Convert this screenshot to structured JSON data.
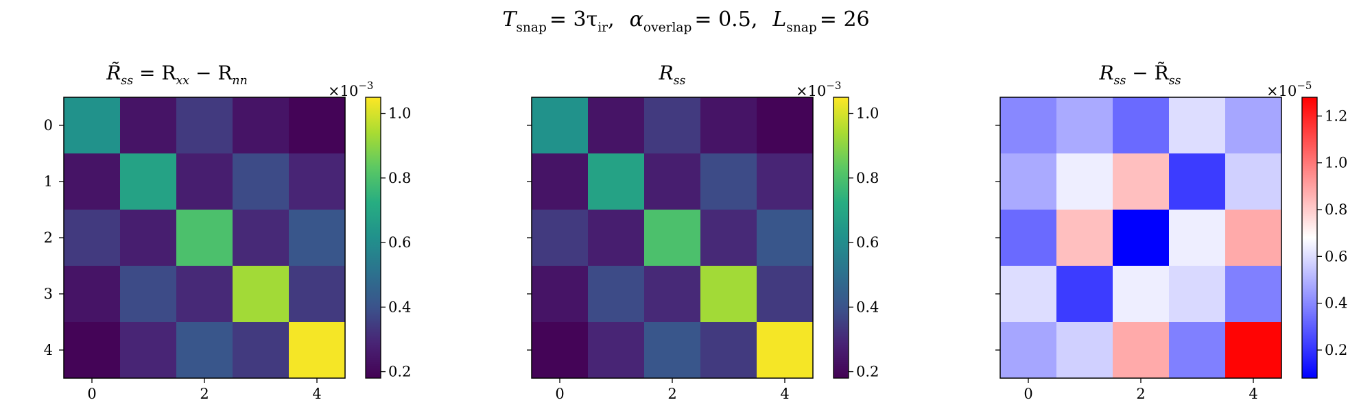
{
  "suptitle": {
    "t_symbol": "T",
    "t_sub": "snap",
    "t_value": "= 3τ",
    "t_value_sub": "ir",
    "sep1": ",",
    "a_symbol": "α",
    "a_sub": "overlap",
    "a_value": "= 0.5",
    "sep2": ",",
    "l_symbol": "L",
    "l_sub": "snap",
    "l_value": "= 26"
  },
  "chart_data": [
    {
      "type": "heatmap",
      "title": "R̃_ss = R_xx − R_nn",
      "title_parts": {
        "main": "R̃",
        "main_sub": "ss",
        "eq": " = R",
        "eq_sub": "xx",
        "minus": " − R",
        "minus_sub": "nn"
      },
      "colormap": "viridis",
      "x_ticks": [
        "0",
        "2",
        "4"
      ],
      "y_ticks": [
        "0",
        "1",
        "2",
        "3",
        "4"
      ],
      "show_y_tick_labels": true,
      "colorbar": {
        "min": 0.18,
        "max": 1.05,
        "ticks": [
          "0.2",
          "0.4",
          "0.6",
          "0.8",
          "1.0"
        ],
        "tick_values": [
          0.2,
          0.4,
          0.6,
          0.8,
          1.0
        ],
        "scale_prefix": "×10",
        "scale_exp": "−3"
      },
      "values": [
        [
          0.62,
          0.24,
          0.34,
          0.24,
          0.19
        ],
        [
          0.24,
          0.68,
          0.27,
          0.38,
          0.29
        ],
        [
          0.34,
          0.27,
          0.8,
          0.3,
          0.41
        ],
        [
          0.24,
          0.38,
          0.3,
          0.93,
          0.34
        ],
        [
          0.19,
          0.29,
          0.41,
          0.34,
          1.04
        ]
      ]
    },
    {
      "type": "heatmap",
      "title": "R_ss",
      "title_parts": {
        "main": "R",
        "main_sub": "ss"
      },
      "colormap": "viridis",
      "x_ticks": [
        "0",
        "2",
        "4"
      ],
      "y_ticks": [
        "0",
        "1",
        "2",
        "3",
        "4"
      ],
      "show_y_tick_labels": false,
      "colorbar": {
        "min": 0.18,
        "max": 1.05,
        "ticks": [
          "0.2",
          "0.4",
          "0.6",
          "0.8",
          "1.0"
        ],
        "tick_values": [
          0.2,
          0.4,
          0.6,
          0.8,
          1.0
        ],
        "scale_prefix": "×10",
        "scale_exp": "−3"
      },
      "values": [
        [
          0.62,
          0.24,
          0.34,
          0.24,
          0.19
        ],
        [
          0.24,
          0.68,
          0.27,
          0.38,
          0.29
        ],
        [
          0.34,
          0.27,
          0.8,
          0.3,
          0.41
        ],
        [
          0.24,
          0.38,
          0.3,
          0.93,
          0.34
        ],
        [
          0.19,
          0.29,
          0.41,
          0.34,
          1.04
        ]
      ]
    },
    {
      "type": "heatmap",
      "title": "R_ss − R̃_ss",
      "title_parts": {
        "main": "R",
        "main_sub": "ss",
        "minus": " − R̃",
        "minus_sub": "ss"
      },
      "colormap": "bwr",
      "x_ticks": [
        "0",
        "2",
        "4"
      ],
      "y_ticks": [
        "0",
        "1",
        "2",
        "3",
        "4"
      ],
      "show_y_tick_labels": false,
      "colorbar": {
        "min": 0.08,
        "max": 1.28,
        "ticks": [
          "0.2",
          "0.4",
          "0.6",
          "0.8",
          "1.0",
          "1.2"
        ],
        "tick_values": [
          0.2,
          0.4,
          0.6,
          0.8,
          1.0,
          1.2
        ],
        "scale_prefix": "×10",
        "scale_exp": "−5"
      },
      "values": [
        [
          0.4,
          0.48,
          0.33,
          0.6,
          0.47
        ],
        [
          0.48,
          0.64,
          0.83,
          0.22,
          0.57
        ],
        [
          0.33,
          0.83,
          0.08,
          0.64,
          0.88
        ],
        [
          0.6,
          0.22,
          0.64,
          0.59,
          0.38
        ],
        [
          0.47,
          0.57,
          0.88,
          0.38,
          1.27
        ]
      ]
    }
  ]
}
